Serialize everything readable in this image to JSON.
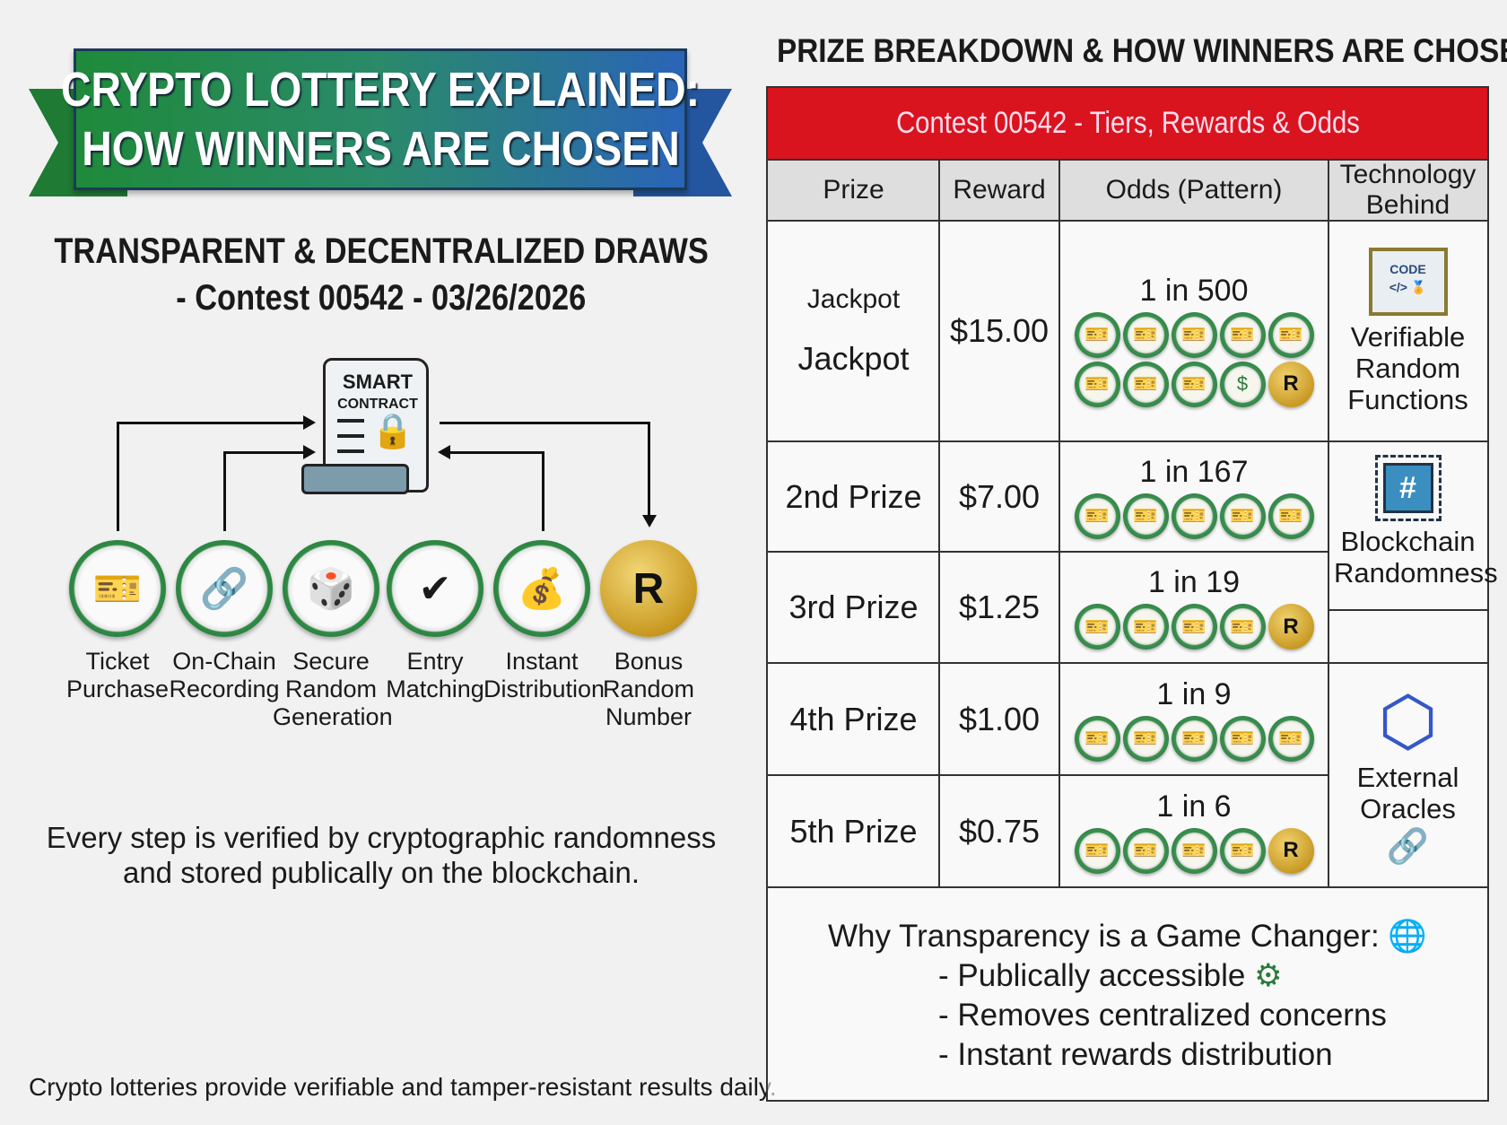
{
  "banner": {
    "line1": "CRYPTO LOTTERY EXPLAINED:",
    "line2": "HOW WINNERS ARE CHOSEN",
    "colors": [
      "#1f8a3a",
      "#2a64b8"
    ]
  },
  "subtitle": {
    "line1": "TRANSPARENT & DECENTRALIZED DRAWS",
    "line2": "- Contest 00542 - 03/26/2026"
  },
  "smart_contract": {
    "line1": "SMART",
    "line2": "CONTRACT",
    "icon": "lock-icon"
  },
  "steps": [
    {
      "label": "Ticket\nPurchase",
      "icon": "ticket-icon",
      "glyph": "🎫"
    },
    {
      "label": "On-Chain\nRecording",
      "icon": "chain-link-icon",
      "glyph": "🔗"
    },
    {
      "label": "Secure\nRandom\nGeneration",
      "icon": "dice-lock-icon",
      "glyph": "🎲"
    },
    {
      "label": "Entry\nMatching",
      "icon": "checkmark-ticket-icon",
      "glyph": "✔"
    },
    {
      "label": "Instant\nDistribution",
      "icon": "money-bag-hand-icon",
      "glyph": "💰"
    },
    {
      "label": "Bonus\nRandom\nNumber",
      "icon": "bonus-r-coin-icon",
      "glyph": "R"
    }
  ],
  "footer": {
    "line1": "Every step is verified by cryptographic randomness",
    "line2": "and stored publically on the blockchain.",
    "bottom": "Crypto lotteries provide verifiable and tamper-resistant results daily."
  },
  "right": {
    "title": "PRIZE BREAKDOWN & HOW WINNERS ARE CHOSEN",
    "table_title": "Contest 00542 - Tiers, Rewards & Odds",
    "header_color": "#d9141f",
    "columns": [
      "Prize",
      "Reward",
      "Odds (Pattern)",
      "Technology Behind"
    ],
    "rows": [
      {
        "prize_small": "Jackpot",
        "prize": "Jackpot",
        "reward": "$15.00",
        "odds": "1 in 500",
        "coins": [
          [
            "ticket",
            "ticket",
            "ticket",
            "ticket",
            "ticket"
          ],
          [
            "ticket",
            "ticket",
            "ticket",
            "money",
            "bonus"
          ]
        ]
      },
      {
        "prize": "2nd Prize",
        "reward": "$7.00",
        "odds": "1 in 167",
        "coins": [
          [
            "ticket",
            "ticket",
            "ticket",
            "ticket",
            "ticket"
          ]
        ]
      },
      {
        "prize": "3rd Prize",
        "reward": "$1.25",
        "odds": "1 in 19",
        "coins": [
          [
            "ticket",
            "ticket",
            "ticket",
            "ticket",
            "bonus"
          ]
        ]
      },
      {
        "prize": "4th Prize",
        "reward": "$1.00",
        "odds": "1 in 9",
        "coins": [
          [
            "ticket",
            "ticket",
            "ticket",
            "ticket",
            "ticket"
          ]
        ]
      },
      {
        "prize": "5th Prize",
        "reward": "$0.75",
        "odds": "1 in 6",
        "coins": [
          [
            "ticket",
            "ticket",
            "ticket",
            "ticket",
            "bonus"
          ]
        ]
      }
    ],
    "bonus_letter": "R",
    "technology": [
      {
        "label": "Verifiable Random Functions",
        "icon": "code-certificate-icon"
      },
      {
        "label": "Blockchain Randomness",
        "icon": "hash-chip-icon"
      },
      {
        "label": "External Oracles",
        "icon": "hexagon-oracle-icon"
      }
    ],
    "why": {
      "title": "Why Transparency is a Game Changer:",
      "items": [
        "- Publically accessible",
        "- Removes centralized concerns",
        "- Instant rewards distribution"
      ]
    }
  }
}
